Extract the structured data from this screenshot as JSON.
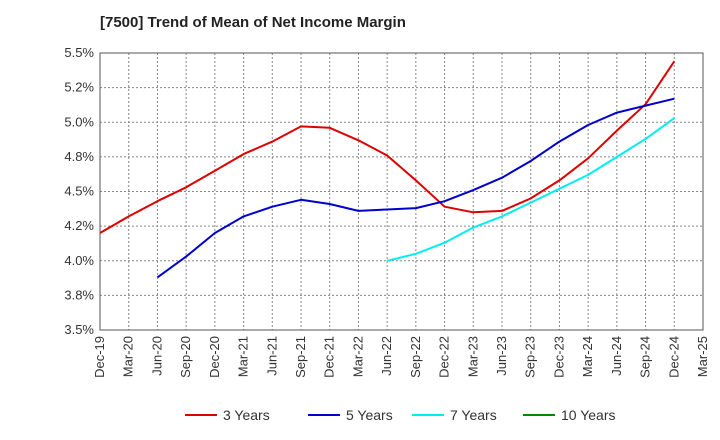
{
  "chart_data": {
    "type": "line",
    "title": "[7500]  Trend of Mean of Net Income Margin",
    "x_labels": [
      "Dec-19",
      "Mar-20",
      "Jun-20",
      "Sep-20",
      "Dec-20",
      "Mar-21",
      "Jun-21",
      "Sep-21",
      "Dec-21",
      "Mar-22",
      "Jun-22",
      "Sep-22",
      "Dec-22",
      "Mar-23",
      "Jun-23",
      "Sep-23",
      "Dec-23",
      "Mar-24",
      "Jun-24",
      "Sep-24",
      "Dec-24",
      "Mar-25"
    ],
    "y_ticks": [
      3.5,
      3.75,
      4.0,
      4.25,
      4.5,
      4.75,
      5.0,
      5.25,
      5.5
    ],
    "y_tick_labels": [
      "3.5%",
      "3.8%",
      "4.0%",
      "4.2%",
      "4.5%",
      "4.8%",
      "5.0%",
      "5.2%",
      "5.5%"
    ],
    "ylim": [
      3.5,
      5.5
    ],
    "grid": true,
    "legend_position": "bottom",
    "series": [
      {
        "name": "3 Years",
        "color": "#dd0000",
        "values": [
          4.2,
          4.32,
          4.43,
          4.53,
          4.65,
          4.77,
          4.86,
          4.97,
          4.96,
          4.87,
          4.76,
          4.58,
          4.39,
          4.35,
          4.36,
          4.45,
          4.58,
          4.74,
          4.94,
          5.13,
          5.44,
          null
        ]
      },
      {
        "name": "5 Years",
        "color": "#0000cc",
        "values": [
          null,
          null,
          3.88,
          4.03,
          4.2,
          4.32,
          4.39,
          4.44,
          4.41,
          4.36,
          4.37,
          4.38,
          4.43,
          4.51,
          4.6,
          4.72,
          4.86,
          4.98,
          5.07,
          5.12,
          5.17,
          null
        ]
      },
      {
        "name": "7 Years",
        "color": "#00eeee",
        "values": [
          null,
          null,
          null,
          null,
          null,
          null,
          null,
          null,
          null,
          null,
          4.0,
          4.05,
          4.13,
          4.24,
          4.32,
          4.42,
          4.52,
          4.62,
          4.75,
          4.88,
          5.03,
          null
        ]
      },
      {
        "name": "10 Years",
        "color": "#008800",
        "values": [
          null,
          null,
          null,
          null,
          null,
          null,
          null,
          null,
          null,
          null,
          null,
          null,
          null,
          null,
          null,
          null,
          null,
          null,
          null,
          null,
          null,
          null
        ]
      }
    ]
  }
}
